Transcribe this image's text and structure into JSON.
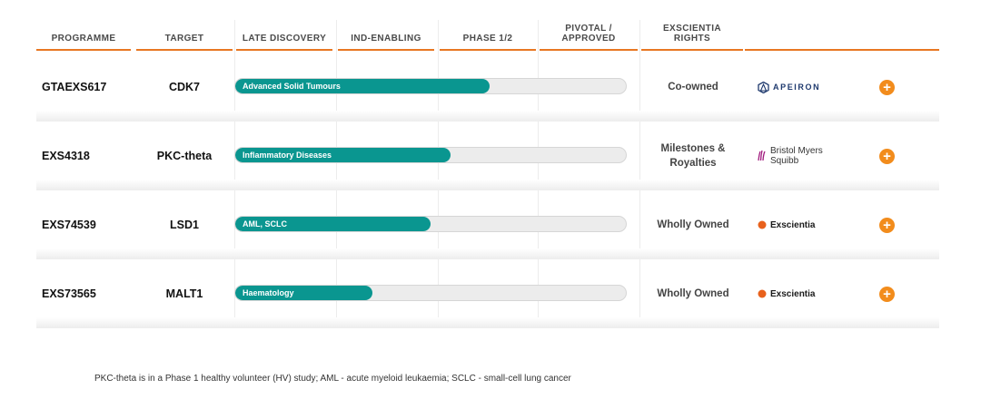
{
  "headers": {
    "programme": "PROGRAMME",
    "target": "TARGET",
    "late_discovery": "LATE DISCOVERY",
    "ind_enabling": "IND-ENABLING",
    "phase_1_2": "PHASE 1/2",
    "pivotal_approved_1": "PIVOTAL /",
    "pivotal_approved_2": "APPROVED",
    "rights_1": "EXSCIENTIA",
    "rights_2": "RIGHTS"
  },
  "rows": [
    {
      "programme": "GTAEXS617",
      "target": "CDK7",
      "indication": "Advanced Solid Tumours",
      "progress_fraction": 0.65,
      "rights_line1": "Co-owned",
      "rights_line2": "",
      "partner": "APEIRON",
      "partner_icon": "apeiron-logo-icon"
    },
    {
      "programme": "EXS4318",
      "target": "PKC-theta",
      "indication": "Inflammatory Diseases",
      "progress_fraction": 0.55,
      "rights_line1": "Milestones &",
      "rights_line2": "Royalties",
      "partner_line1": "Bristol Myers",
      "partner_line2": "Squibb",
      "partner_icon": "bms-logo-icon"
    },
    {
      "programme": "EXS74539",
      "target": "LSD1",
      "indication": "AML, SCLC",
      "progress_fraction": 0.5,
      "rights_line1": "Wholly Owned",
      "rights_line2": "",
      "partner": "Exscientia",
      "partner_icon": "exscientia-logo-icon"
    },
    {
      "programme": "EXS73565",
      "target": "MALT1",
      "indication": "Haematology",
      "progress_fraction": 0.35,
      "rights_line1": "Wholly Owned",
      "rights_line2": "",
      "partner": "Exscientia",
      "partner_icon": "exscientia-logo-icon"
    }
  ],
  "expand_symbol": "+",
  "footnote": "PKC-theta is in a Phase 1 healthy volunteer (HV) study; AML - acute myeloid leukaemia; SCLC - small-cell lung cancer",
  "colors": {
    "accent": "#e87722",
    "bar_fill": "#0a9690",
    "plus_button": "#f28c1c"
  }
}
